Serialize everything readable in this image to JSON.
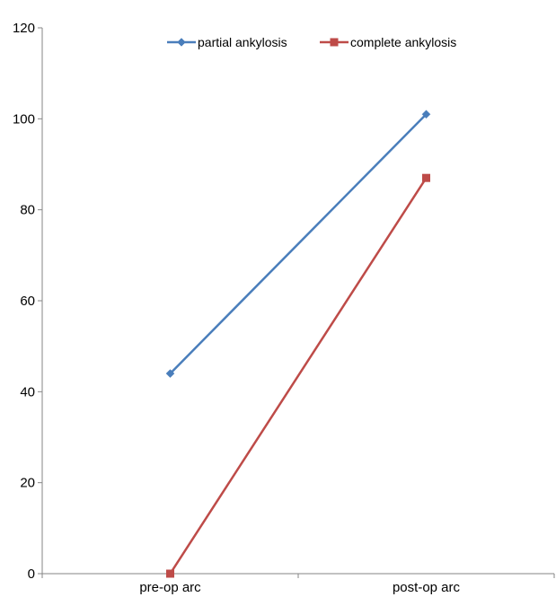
{
  "chart_data": {
    "type": "line",
    "categories": [
      "pre-op arc",
      "post-op arc"
    ],
    "series": [
      {
        "name": "partial ankylosis",
        "values": [
          44,
          101
        ],
        "color": "#4a7ebb",
        "marker": "diamond"
      },
      {
        "name": "complete ankylosis",
        "values": [
          0,
          87
        ],
        "color": "#be4b48",
        "marker": "square"
      }
    ],
    "ylim": [
      0,
      120
    ],
    "yticks": [
      0,
      20,
      40,
      60,
      80,
      100,
      120
    ],
    "title": "",
    "xlabel": "",
    "ylabel": "",
    "grid": false,
    "legend_position": "top-center"
  }
}
